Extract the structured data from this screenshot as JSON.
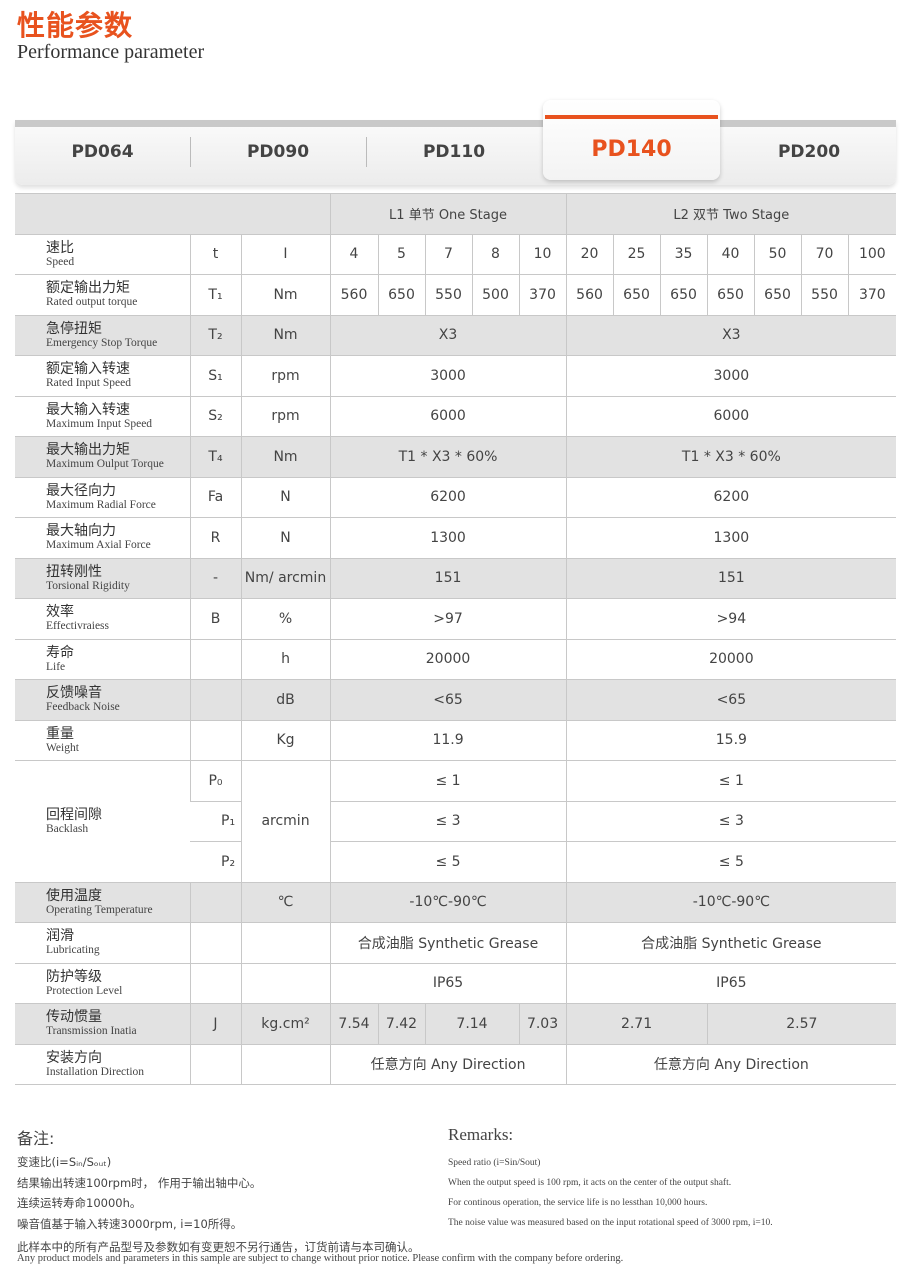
{
  "header": {
    "title": "性能参数",
    "subtitle": "Performance parameter"
  },
  "tabs": [
    {
      "label": "PD064"
    },
    {
      "label": "PD090"
    },
    {
      "label": "PD110"
    },
    {
      "label": "PD140",
      "active": true
    },
    {
      "label": "PD200"
    }
  ],
  "colors": {
    "accent": "#e8521e",
    "row_gray": "#e2e2e2"
  },
  "table": {
    "header": [
      "L1 单节 One Stage",
      "L2 双节 Two Stage"
    ],
    "rows": [
      {
        "zh": "速比",
        "en": "Speed",
        "sym": "t",
        "unit": "I",
        "cells": [
          [
            "4",
            1
          ],
          [
            "5",
            1
          ],
          [
            "7",
            1
          ],
          [
            "8",
            1
          ],
          [
            "10",
            1
          ],
          [
            "20",
            1
          ],
          [
            "25",
            1
          ],
          [
            "35",
            1
          ],
          [
            "40",
            1
          ],
          [
            "50",
            1
          ],
          [
            "70",
            1
          ],
          [
            "100",
            1
          ]
        ]
      },
      {
        "zh": "额定输出力矩",
        "en": "Rated output torque",
        "sym": "T₁",
        "unit": "Nm",
        "cells": [
          [
            "560",
            1
          ],
          [
            "650",
            1
          ],
          [
            "550",
            1
          ],
          [
            "500",
            1
          ],
          [
            "370",
            1
          ],
          [
            "560",
            1
          ],
          [
            "650",
            1
          ],
          [
            "650",
            1
          ],
          [
            "650",
            1
          ],
          [
            "650",
            1
          ],
          [
            "550",
            1
          ],
          [
            "370",
            1
          ]
        ]
      },
      {
        "zh": "急停扭矩",
        "en": "Emergency Stop Torque",
        "sym": "T₂",
        "unit": "Nm",
        "gray": true,
        "cells": [
          [
            "X3",
            5
          ],
          [
            "X3",
            7
          ]
        ]
      },
      {
        "zh": "额定输入转速",
        "en": "Rated Input Speed",
        "sym": "S₁",
        "unit": "rpm",
        "cells": [
          [
            "3000",
            5
          ],
          [
            "3000",
            7
          ]
        ]
      },
      {
        "zh": "最大输入转速",
        "en": "Maximum Input Speed",
        "sym": "S₂",
        "unit": "rpm",
        "cells": [
          [
            "6000",
            5
          ],
          [
            "6000",
            7
          ]
        ]
      },
      {
        "zh": "最大输出力矩",
        "en": "Maximum Oulput Torque",
        "sym": "T₄",
        "unit": "Nm",
        "gray": true,
        "cells": [
          [
            "T1 * X3 * 60%",
            5
          ],
          [
            "T1 * X3 * 60%",
            7
          ]
        ]
      },
      {
        "zh": "最大径向力",
        "en": "Maximum Radial Force",
        "sym": "Fa",
        "unit": "N",
        "cells": [
          [
            "6200",
            5
          ],
          [
            "6200",
            7
          ]
        ]
      },
      {
        "zh": "最大轴向力",
        "en": "Maximum Axial Force",
        "sym": "R",
        "unit": "N",
        "cells": [
          [
            "1300",
            5
          ],
          [
            "1300",
            7
          ]
        ]
      },
      {
        "zh": "扭转刚性",
        "en": "Torsional Rigidity",
        "sym": "-",
        "unit": "Nm/ arcmin",
        "gray": true,
        "cells": [
          [
            "151",
            5
          ],
          [
            "151",
            7
          ]
        ]
      },
      {
        "zh": "效率",
        "en": "Effectivraiess",
        "sym": "B",
        "unit": "%",
        "cells": [
          [
            ">97",
            5
          ],
          [
            ">94",
            7
          ]
        ]
      },
      {
        "zh": "寿命",
        "en": "Life",
        "sym": "",
        "unit": "h",
        "cells": [
          [
            "20000",
            5
          ],
          [
            "20000",
            7
          ]
        ]
      },
      {
        "zh": "反馈噪音",
        "en": "Feedback Noise",
        "sym": "",
        "unit": "dB",
        "gray": true,
        "cells": [
          [
            "<65",
            5
          ],
          [
            "<65",
            7
          ]
        ]
      },
      {
        "zh": "重量",
        "en": "Weight",
        "sym": "",
        "unit": "Kg",
        "cells": [
          [
            "11.9",
            5
          ],
          [
            "15.9",
            7
          ]
        ]
      },
      {
        "zh": "回程间隙",
        "en": "Backlash",
        "sym": "P₀",
        "unit": "arcmin",
        "span3": true,
        "cells": [
          [
            "≤ 1",
            5
          ],
          [
            "≤ 1",
            7
          ]
        ]
      },
      {
        "sym": "P₁",
        "cells": [
          [
            "≤ 3",
            5
          ],
          [
            "≤ 3",
            7
          ]
        ]
      },
      {
        "sym": "P₂",
        "cells": [
          [
            "≤ 5",
            5
          ],
          [
            "≤ 5",
            7
          ]
        ]
      },
      {
        "zh": "使用温度",
        "en": "Operating Temperature",
        "sym": "",
        "unit": "℃",
        "gray": true,
        "cells": [
          [
            "-10℃-90℃",
            5
          ],
          [
            "-10℃-90℃",
            7
          ]
        ]
      },
      {
        "zh": "润滑",
        "en": "Lubricating",
        "sym": "",
        "unit": "",
        "cells": [
          [
            "合成油脂  Synthetic Grease",
            5
          ],
          [
            "合成油脂  Synthetic Grease",
            7
          ]
        ]
      },
      {
        "zh": "防护等级",
        "en": "Protection Level",
        "sym": "",
        "unit": "",
        "cells": [
          [
            "IP65",
            5
          ],
          [
            "IP65",
            7
          ]
        ]
      },
      {
        "zh": "传动惯量",
        "en": "Transmission Inatia",
        "sym": "J",
        "unit": "kg.cm²",
        "gray": true,
        "cells": [
          [
            "7.54",
            1
          ],
          [
            "7.42",
            1
          ],
          [
            "7.14",
            2
          ],
          [
            "7.03",
            1
          ],
          [
            "2.71",
            3
          ],
          [
            "2.57",
            4
          ]
        ]
      },
      {
        "zh": "安装方向",
        "en": "Installation Direction",
        "sym": "",
        "unit": "",
        "cells": [
          [
            "任意方向 Any Direction",
            5
          ],
          [
            "任意方向 Any Direction",
            7
          ]
        ]
      }
    ]
  },
  "remarks": {
    "zh_title": "备注:",
    "en_title": "Remarks:",
    "zh": [
      "变速比(i=Sᵢₙ/Sₒᵤₜ)",
      "结果输出转速100rpm时， 作用于输出轴中心。",
      "连续运转寿命10000h。",
      "噪音值基于输入转速3000rpm, i=10所得。"
    ],
    "en": [
      "Speed ratio (i=Sin/Sout)",
      "When the output speed is 100 rpm, it acts on the center of the output shaft.",
      "For continous operation, the service life is no lessthan 10,000 hours.",
      "The noise value was measured based on the input rotational speed of 3000 rpm, i=10."
    ]
  },
  "footer": {
    "zh": "此样本中的所有产品型号及参数如有变更恕不另行通告，订货前请与本司确认。",
    "en": "Any product models and parameters in this sample are subject to change without prior notice. Please confirm with the company before ordering."
  }
}
